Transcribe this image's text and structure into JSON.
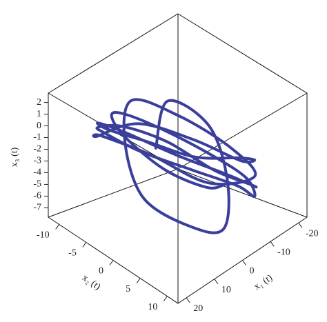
{
  "chart_data": {
    "type": "line3d",
    "xlabel": "x₁ (t)",
    "ylabel": "x₂ (t)",
    "zlabel": "x₃ (t)",
    "xlim": [
      23,
      -23
    ],
    "xticks": [
      20,
      10,
      0,
      -10,
      -20
    ],
    "ylim": [
      -12,
      12
    ],
    "yticks": [
      -10,
      -5,
      0,
      5,
      10
    ],
    "zlim": [
      -7.8,
      2.8
    ],
    "zticks": [
      2,
      1,
      0,
      -1,
      -2,
      -3,
      -4,
      -5,
      -6,
      -7
    ],
    "color": "#3a3f9c",
    "x": [
      -5,
      5,
      14,
      17,
      12,
      3,
      -6,
      -14,
      -17,
      -12,
      -4,
      6,
      15,
      18,
      13,
      2,
      -8,
      -15,
      -16,
      -10,
      -2,
      8,
      16,
      15,
      7,
      -3,
      -12,
      -18,
      -14,
      -5,
      4,
      12,
      17,
      10,
      0,
      -9,
      -16,
      -13,
      -6,
      3,
      11,
      16,
      9,
      -1,
      -10,
      -15,
      -8,
      2
    ],
    "y": [
      6,
      8,
      5,
      -1,
      -6,
      -8,
      -5,
      0,
      4,
      8,
      9,
      6,
      1,
      -4,
      -8,
      -9,
      -6,
      -1,
      5,
      9,
      8,
      4,
      -2,
      -7,
      -9,
      -7,
      -3,
      2,
      7,
      9,
      5,
      -1,
      -6,
      -9,
      -5,
      1,
      6,
      3,
      -3,
      -7,
      -4,
      2,
      7,
      8,
      4,
      -2,
      -6,
      -3
    ],
    "z": [
      -4,
      -2,
      0,
      1.5,
      1,
      -1,
      -3,
      -5,
      -6,
      -5.5,
      -3,
      -1,
      0.5,
      1,
      -0.5,
      -2.5,
      -4.5,
      -6.5,
      -6,
      -4,
      -2,
      0,
      1.5,
      0.5,
      -2,
      -4,
      -5.5,
      -5,
      -3,
      -1,
      1,
      1.8,
      0,
      -2,
      -4,
      -6,
      -5,
      -3,
      -1,
      0.5,
      -1,
      -3,
      -5,
      -6.5,
      -5,
      -3,
      -1,
      -2.5
    ]
  }
}
